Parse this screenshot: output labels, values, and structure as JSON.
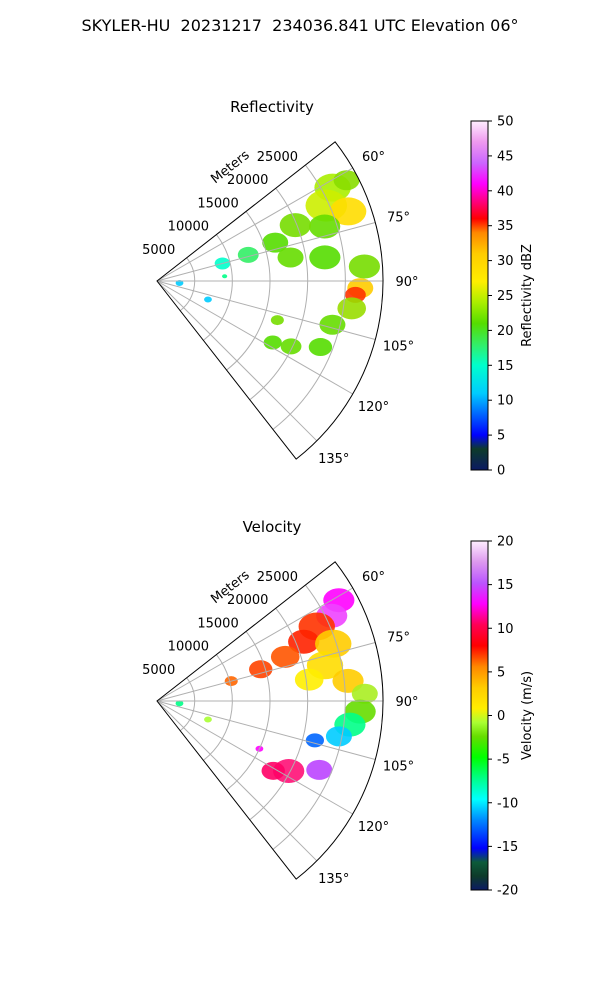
{
  "title": "SKYLER-HU  20231217  234036.841 UTC Elevation 06°",
  "chart_data": [
    {
      "type": "heatmap",
      "subtype": "radar-ppi-sector",
      "title": "Reflectivity",
      "range_label": "Meters",
      "range_ticks": [
        5000,
        10000,
        15000,
        20000,
        25000
      ],
      "range_max": 30000,
      "azimuth_ticks": [
        "60°",
        "75°",
        "90°",
        "105°",
        "120°",
        "135°"
      ],
      "azimuth_tick_values": [
        60,
        75,
        90,
        105,
        120,
        135
      ],
      "azimuth_range": [
        52,
        142
      ],
      "colorbar": {
        "label": "Reflectivity dBZ",
        "min": 0,
        "max": 50,
        "ticks": [
          "0",
          "5",
          "10",
          "15",
          "20",
          "25",
          "30",
          "35",
          "40",
          "45",
          "50"
        ]
      }
    },
    {
      "type": "heatmap",
      "subtype": "radar-ppi-sector",
      "title": "Velocity",
      "range_label": "Meters",
      "range_ticks": [
        5000,
        10000,
        15000,
        20000,
        25000
      ],
      "range_max": 30000,
      "azimuth_ticks": [
        "60°",
        "75°",
        "90°",
        "105°",
        "120°",
        "135°"
      ],
      "azimuth_tick_values": [
        60,
        75,
        90,
        105,
        120,
        135
      ],
      "azimuth_range": [
        52,
        142
      ],
      "colorbar": {
        "label": "Velocity (m/s)",
        "min": -20,
        "max": 20,
        "ticks": [
          "-20",
          "-15",
          "-10",
          "-5",
          "0",
          "5",
          "10",
          "15",
          "20"
        ]
      }
    }
  ]
}
